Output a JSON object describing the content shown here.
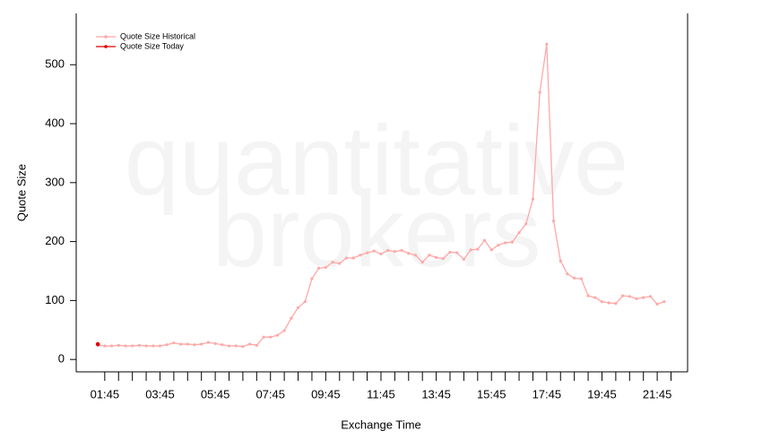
{
  "chart_data": {
    "type": "line",
    "y_label": "Quote Size",
    "x_label": "Exchange Time",
    "watermark": [
      "quantitative",
      "brokers"
    ],
    "x": [
      "01:30",
      "01:45",
      "02:00",
      "02:15",
      "02:30",
      "02:45",
      "03:00",
      "03:15",
      "03:30",
      "03:45",
      "04:00",
      "04:15",
      "04:30",
      "04:45",
      "05:00",
      "05:15",
      "05:30",
      "05:45",
      "06:00",
      "06:15",
      "06:30",
      "06:45",
      "07:00",
      "07:15",
      "07:30",
      "07:45",
      "08:00",
      "08:15",
      "08:30",
      "08:45",
      "09:00",
      "09:15",
      "09:30",
      "09:45",
      "10:00",
      "10:15",
      "10:30",
      "10:45",
      "11:00",
      "11:15",
      "11:30",
      "11:45",
      "12:00",
      "12:15",
      "12:30",
      "12:45",
      "13:00",
      "13:15",
      "13:30",
      "13:45",
      "14:00",
      "14:15",
      "14:30",
      "14:45",
      "15:00",
      "15:15",
      "15:30",
      "15:45",
      "16:00",
      "16:15",
      "16:30",
      "16:45",
      "17:00",
      "17:15",
      "17:30",
      "17:45",
      "18:00",
      "18:15",
      "18:30",
      "18:45",
      "19:00",
      "19:15",
      "19:30",
      "19:45",
      "20:00",
      "20:15",
      "20:30",
      "20:45",
      "21:00",
      "21:15",
      "21:30",
      "21:45",
      "22:00"
    ],
    "series": [
      {
        "name": "Quote Size Historical",
        "color": "#ffa8a8",
        "values": [
          24,
          23,
          23,
          24,
          23,
          23,
          24,
          23,
          23,
          23,
          25,
          28,
          26,
          26,
          25,
          26,
          29,
          27,
          25,
          23,
          23,
          22,
          26,
          24,
          38,
          38,
          41,
          49,
          70,
          88,
          98,
          137,
          155,
          156,
          165,
          163,
          172,
          172,
          177,
          181,
          184,
          179,
          185,
          183,
          185,
          180,
          177,
          165,
          177,
          173,
          171,
          182,
          181,
          170,
          186,
          187,
          202,
          186,
          194,
          198,
          199,
          215,
          230,
          272,
          453,
          535,
          235,
          167,
          145,
          138,
          137,
          108,
          105,
          98,
          96,
          95,
          108,
          107,
          103,
          105,
          107,
          94,
          98
        ]
      },
      {
        "name": "Quote Size Today",
        "color": "#e00000",
        "values": [
          26,
          null,
          null,
          null,
          null,
          null,
          null,
          null,
          null,
          null,
          null,
          null,
          null,
          null,
          null,
          null,
          null,
          null,
          null,
          null,
          null,
          null,
          null,
          null,
          null,
          null,
          null,
          null,
          null,
          null,
          null,
          null,
          null,
          null,
          null,
          null,
          null,
          null,
          null,
          null,
          null,
          null,
          null,
          null,
          null,
          null,
          null,
          null,
          null,
          null,
          null,
          null,
          null,
          null,
          null,
          null,
          null,
          null,
          null,
          null,
          null,
          null,
          null,
          null,
          null,
          null,
          null,
          null,
          null,
          null,
          null,
          null,
          null,
          null,
          null,
          null,
          null,
          null,
          null,
          null,
          null,
          null,
          null
        ]
      }
    ],
    "xlim": [
      "00:43",
      "22:51"
    ],
    "xticks": [
      "01:45",
      "03:45",
      "05:45",
      "07:45",
      "09:45",
      "11:45",
      "13:45",
      "15:45",
      "17:45",
      "19:45",
      "21:45"
    ],
    "xminorticks": [
      "02:15",
      "02:45",
      "03:15",
      "04:15",
      "04:45",
      "05:15",
      "06:15",
      "06:45",
      "07:15",
      "08:15",
      "08:45",
      "09:15",
      "10:15",
      "10:45",
      "11:15",
      "12:15",
      "12:45",
      "13:15",
      "14:15",
      "14:45",
      "15:15",
      "16:15",
      "16:45",
      "17:15",
      "18:15",
      "18:45",
      "19:15",
      "20:15",
      "20:45",
      "21:15",
      "22:15"
    ],
    "ylim": [
      -21,
      587
    ],
    "yticks": [
      0,
      100,
      200,
      300,
      400,
      500
    ],
    "legend": "top-left"
  }
}
